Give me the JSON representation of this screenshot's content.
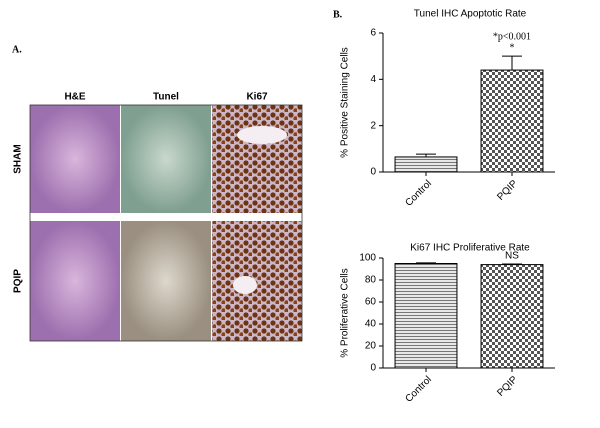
{
  "panel_labels": [
    "A.",
    "B."
  ],
  "image_grid": {
    "columns": [
      "H&E",
      "Tunel",
      "Ki67"
    ],
    "rows": [
      "SHAM",
      "PQIP"
    ]
  },
  "chart_data": [
    {
      "type": "bar",
      "title": "Tunel IHC Apoptotic Rate",
      "y_label": "% Positive Staining Cells",
      "categories": [
        "Control",
        "PQIP"
      ],
      "values": [
        0.65,
        4.4
      ],
      "errors": [
        0.12,
        0.6
      ],
      "ylim": [
        0,
        6
      ],
      "yticks": [
        0,
        2,
        4,
        6
      ],
      "annotations": [
        "*p<0.001",
        "*"
      ]
    },
    {
      "type": "bar",
      "title": "Ki67 IHC Proliferative Rate",
      "y_label": "% Proliferative Cells",
      "categories": [
        "Control",
        "PQIP"
      ],
      "values": [
        95,
        94
      ],
      "errors": [
        0.6,
        0.6
      ],
      "ylim": [
        0,
        100
      ],
      "yticks": [
        0,
        20,
        40,
        60,
        80,
        100
      ],
      "annotations": [
        "NS"
      ]
    }
  ]
}
